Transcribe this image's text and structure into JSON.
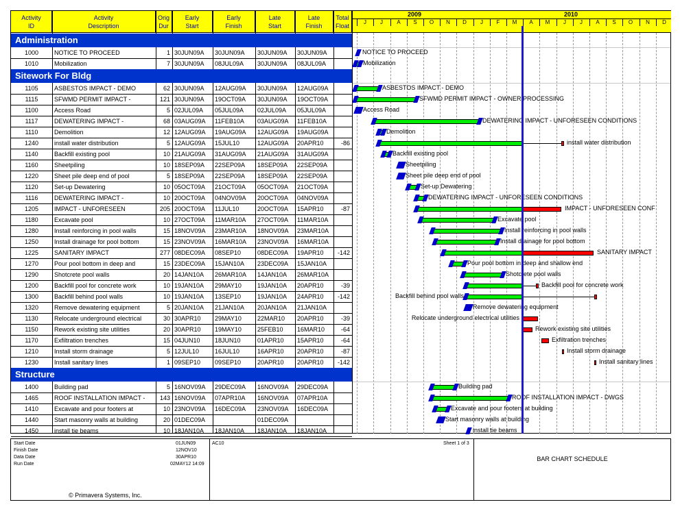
{
  "columns": [
    {
      "label": "Activity\nID"
    },
    {
      "label": "Activity\nDescription"
    },
    {
      "label": "Orig\nDur"
    },
    {
      "label": "Early\nStart"
    },
    {
      "label": "Early\nFinish"
    },
    {
      "label": "Late\nStart"
    },
    {
      "label": "Late\nFinish"
    },
    {
      "label": "Total\nFloat"
    }
  ],
  "timescale": {
    "years": [
      {
        "label": "2009"
      },
      {
        "label": "2010"
      }
    ],
    "months": [
      "J",
      "J",
      "A",
      "S",
      "O",
      "N",
      "D",
      "J",
      "F",
      "M",
      "A",
      "M",
      "J",
      "J",
      "A",
      "S",
      "O",
      "N",
      "D"
    ]
  },
  "data_date_label": "30APR10",
  "sections": [
    {
      "title": "Administration",
      "activities": [
        {
          "id": "1000",
          "desc": "NOTICE TO PROCEED",
          "dur": "1",
          "es": "30JUN09A",
          "ef": "30JUN09A",
          "ls": "30JUN09A",
          "lf": "30JUN09A",
          "tf": "",
          "bar_label": "NOTICE TO PROCEED"
        },
        {
          "id": "1010",
          "desc": "Mobilization",
          "dur": "7",
          "es": "30JUN09A",
          "ef": "08JUL09A",
          "ls": "30JUN09A",
          "lf": "08JUL09A",
          "tf": "",
          "bar_label": "Mobilization"
        }
      ]
    },
    {
      "title": "Sitework For Bldg",
      "activities": [
        {
          "id": "1105",
          "desc": "ASBESTOS IMPACT - DEMO",
          "dur": "62",
          "es": "30JUN09A",
          "ef": "12AUG09A",
          "ls": "30JUN09A",
          "lf": "12AUG09A",
          "tf": "",
          "bar_label": "ASBESTOS IMPACT - DEMO"
        },
        {
          "id": "1115",
          "desc": "SFWMD PERMIT IMPACT -",
          "dur": "121",
          "es": "30JUN09A",
          "ef": "19OCT09A",
          "ls": "30JUN09A",
          "lf": "19OCT09A",
          "tf": "",
          "bar_label": "SFWMD PERMIT IMPACT - OWNER PROCESSING"
        },
        {
          "id": "1100",
          "desc": "Access Road",
          "dur": "5",
          "es": "02JUL09A",
          "ef": "05JUL09A",
          "ls": "02JUL09A",
          "lf": "05JUL09A",
          "tf": "",
          "bar_label": "Access Road"
        },
        {
          "id": "1117",
          "desc": "DEWATERING IMPACT -",
          "dur": "68",
          "es": "03AUG09A",
          "ef": "11FEB10A",
          "ls": "03AUG09A",
          "lf": "11FEB10A",
          "tf": "",
          "bar_label": "DEWATERING IMPACT - UNFORESEEN CONDITIONS"
        },
        {
          "id": "1110",
          "desc": "Demolition",
          "dur": "12",
          "es": "12AUG09A",
          "ef": "19AUG09A",
          "ls": "12AUG09A",
          "lf": "19AUG09A",
          "tf": "",
          "bar_label": "Demolition"
        },
        {
          "id": "1240",
          "desc": "install water distribution",
          "dur": "5",
          "es": "12AUG09A",
          "ef": "15JUL10",
          "ls": "12AUG09A",
          "lf": "20APR10",
          "tf": "-86",
          "bar_label": "install water distribution"
        },
        {
          "id": "1140",
          "desc": "Backfill existing pool",
          "dur": "10",
          "es": "21AUG09A",
          "ef": "31AUG09A",
          "ls": "21AUG09A",
          "lf": "31AUG09A",
          "tf": "",
          "bar_label": "Backfill existing pool"
        },
        {
          "id": "1160",
          "desc": "Sheetpiling",
          "dur": "10",
          "es": "18SEP09A",
          "ef": "22SEP09A",
          "ls": "18SEP09A",
          "lf": "22SEP09A",
          "tf": "",
          "bar_label": "Sheetpiling"
        },
        {
          "id": "1220",
          "desc": "Sheet pile deep end of pool",
          "dur": "5",
          "es": "18SEP09A",
          "ef": "22SEP09A",
          "ls": "18SEP09A",
          "lf": "22SEP09A",
          "tf": "",
          "bar_label": "Sheet pile deep end of pool"
        },
        {
          "id": "1120",
          "desc": "Set-up Dewatering",
          "dur": "10",
          "es": "05OCT09A",
          "ef": "21OCT09A",
          "ls": "05OCT09A",
          "lf": "21OCT09A",
          "tf": "",
          "bar_label": "Set-up Dewatering"
        },
        {
          "id": "1116",
          "desc": "DEWATERING IMPACT -",
          "dur": "10",
          "es": "20OCT09A",
          "ef": "04NOV09A",
          "ls": "20OCT09A",
          "lf": "04NOV09A",
          "tf": "",
          "bar_label": "DEWATERING IMPACT - UNFORESEEN CONDITIONS"
        },
        {
          "id": "1205",
          "desc": "IMPACT - UNFORESEEN",
          "dur": "205",
          "es": "20OCT09A",
          "ef": "11JUL10",
          "ls": "20OCT09A",
          "lf": "15APR10",
          "tf": "-87",
          "bar_label": "IMPACT - UNFORESEEN CONF"
        },
        {
          "id": "1180",
          "desc": "Excavate pool",
          "dur": "10",
          "es": "27OCT09A",
          "ef": "11MAR10A",
          "ls": "27OCT09A",
          "lf": "11MAR10A",
          "tf": "",
          "bar_label": "Excavate pool"
        },
        {
          "id": "1280",
          "desc": "Install reinforcing in pool walls",
          "dur": "15",
          "es": "18NOV09A",
          "ef": "23MAR10A",
          "ls": "18NOV09A",
          "lf": "23MAR10A",
          "tf": "",
          "bar_label": "Install reinforcing in pool walls"
        },
        {
          "id": "1250",
          "desc": "Install drainage for pool bottom",
          "dur": "15",
          "es": "23NOV09A",
          "ef": "16MAR10A",
          "ls": "23NOV09A",
          "lf": "16MAR10A",
          "tf": "",
          "bar_label": "Install drainage for pool bottom"
        },
        {
          "id": "1225",
          "desc": "SANITARY IMPACT",
          "dur": "277",
          "es": "08DEC09A",
          "ef": "08SEP10",
          "ls": "08DEC09A",
          "lf": "19APR10",
          "tf": "-142",
          "bar_label": "SANITARY IMPACT"
        },
        {
          "id": "1270",
          "desc": "Pour pool bottom in deep and",
          "dur": "15",
          "es": "23DEC09A",
          "ef": "15JAN10A",
          "ls": "23DEC09A",
          "lf": "15JAN10A",
          "tf": "",
          "bar_label": "Pour pool bottom in deep and shallow end"
        },
        {
          "id": "1290",
          "desc": "Shotcrete pool walls",
          "dur": "20",
          "es": "14JAN10A",
          "ef": "26MAR10A",
          "ls": "14JAN10A",
          "lf": "26MAR10A",
          "tf": "",
          "bar_label": "Shotcrete pool walls"
        },
        {
          "id": "1200",
          "desc": "Backfill pool for concrete work",
          "dur": "10",
          "es": "19JAN10A",
          "ef": "29MAY10",
          "ls": "19JAN10A",
          "lf": "20APR10",
          "tf": "-39",
          "bar_label": "Backfill pool for concrete work"
        },
        {
          "id": "1300",
          "desc": "Backfill behind pool walls",
          "dur": "10",
          "es": "19JAN10A",
          "ef": "13SEP10",
          "ls": "19JAN10A",
          "lf": "24APR10",
          "tf": "-142",
          "bar_label": "Backfill behind pool walls"
        },
        {
          "id": "1320",
          "desc": "Remove dewatering equipment",
          "dur": "5",
          "es": "20JAN10A",
          "ef": "21JAN10A",
          "ls": "20JAN10A",
          "lf": "21JAN10A",
          "tf": "",
          "bar_label": "Remove dewatering equipment"
        },
        {
          "id": "1130",
          "desc": "Relocate underground electrical",
          "dur": "30",
          "es": "30APR10",
          "ef": "29MAY10",
          "ls": "22MAR10",
          "lf": "20APR10",
          "tf": "-39",
          "bar_label": "Relocate underground electrical utilities"
        },
        {
          "id": "1150",
          "desc": "Rework existing site utilities",
          "dur": "20",
          "es": "30APR10",
          "ef": "19MAY10",
          "ls": "25FEB10",
          "lf": "16MAR10",
          "tf": "-64",
          "bar_label": "Rework existing site utilities"
        },
        {
          "id": "1170",
          "desc": "Exfiltration trenches",
          "dur": "15",
          "es": "04JUN10",
          "ef": "18JUN10",
          "ls": "01APR10",
          "lf": "15APR10",
          "tf": "-64",
          "bar_label": "Exfiltration trenches"
        },
        {
          "id": "1210",
          "desc": "Install storm drainage",
          "dur": "5",
          "es": "12JUL10",
          "ef": "16JUL10",
          "ls": "16APR10",
          "lf": "20APR10",
          "tf": "-87",
          "bar_label": "Install storm drainage"
        },
        {
          "id": "1230",
          "desc": "Install sanitary lines",
          "dur": "1",
          "es": "09SEP10",
          "ef": "09SEP10",
          "ls": "20APR10",
          "lf": "20APR10",
          "tf": "-142",
          "bar_label": "Install sanitary lines"
        }
      ]
    },
    {
      "title": "Structure",
      "activities": [
        {
          "id": "1400",
          "desc": "Building pad",
          "dur": "5",
          "es": "16NOV09A",
          "ef": "29DEC09A",
          "ls": "16NOV09A",
          "lf": "29DEC09A",
          "tf": "",
          "bar_label": "Building pad"
        },
        {
          "id": "1465",
          "desc": "ROOF INSTALLATION IMPACT -",
          "dur": "143",
          "es": "16NOV09A",
          "ef": "07APR10A",
          "ls": "16NOV09A",
          "lf": "07APR10A",
          "tf": "",
          "bar_label": "ROOF INSTALLATION IMPACT - DWGS"
        },
        {
          "id": "1410",
          "desc": "Excavate and pour footers at",
          "dur": "10",
          "es": "23NOV09A",
          "ef": "16DEC09A",
          "ls": "23NOV09A",
          "lf": "16DEC09A",
          "tf": "",
          "bar_label": "Excavate and pour footers at building"
        },
        {
          "id": "1440",
          "desc": "Start masonry walls at building",
          "dur": "20",
          "es": "01DEC09A",
          "ef": "",
          "ls": "01DEC09A",
          "lf": "",
          "tf": "",
          "bar_label": "Start masonry walls at building"
        },
        {
          "id": "1450",
          "desc": "install tie beams",
          "dur": "10",
          "es": "18JAN10A",
          "ef": "18JAN10A",
          "ls": "18JAN10A",
          "lf": "18JAN10A",
          "tf": "",
          "bar_label": "install tie beams"
        }
      ]
    }
  ],
  "footer": {
    "start_date_label": "Start Date",
    "start_date": "01JUN09",
    "finish_date_label": "Finish Date",
    "finish_date": "12NOV10",
    "data_date_label": "Data Date",
    "data_date": "30APR10",
    "run_date_label": "Run Date",
    "run_date": "02MAY12 14:09",
    "project_code": "AC10",
    "copyright": "© Primavera Systems, Inc.",
    "sheet": "Sheet 1 of 3",
    "title": "BAR CHART SCHEDULE"
  },
  "colors": {
    "header_bg": "#ffff00",
    "section_bg": "#0033cc",
    "progress_bar": "#00ee00",
    "critical_bar": "#ff0000",
    "data_date_line": "#1a1acc",
    "milestone": "#0000cc"
  }
}
